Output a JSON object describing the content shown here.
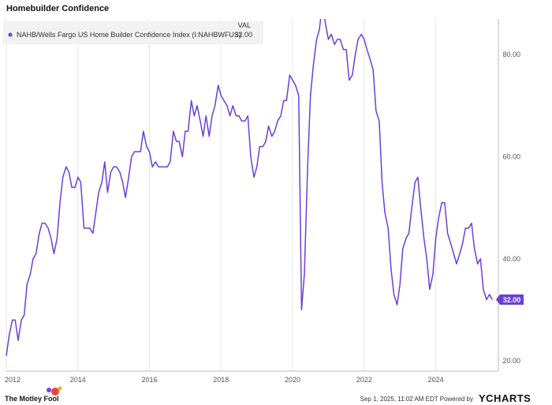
{
  "chart_title": "Homebuilder Confidence",
  "legend": {
    "series_name": "NAHB/Wells Fargo US Home Builder Confidence Index (I:NAHBWFUS)",
    "val_header": "VAL",
    "val": "32.00"
  },
  "end_label": "32.00",
  "footer": {
    "timestamp": "Sep 1, 2025, 11:02 AM EDT Powered by",
    "ycharts": "YCHARTS",
    "brand": "The Motley Fool"
  },
  "colors": {
    "series": "#6b3fd6",
    "grid": "#e6e6e6",
    "axis": "#bbbbbb"
  },
  "chart_data": {
    "type": "line",
    "title": "Homebuilder Confidence",
    "xlabel": "",
    "ylabel": "",
    "xlim": [
      2012.0,
      2025.75
    ],
    "ylim": [
      18,
      87
    ],
    "x_ticks": [
      2012,
      2014,
      2016,
      2018,
      2020,
      2022,
      2024
    ],
    "x_tick_labels": [
      "2012",
      "2014",
      "2016",
      "2018",
      "2020",
      "2022",
      "2024"
    ],
    "y_ticks": [
      20,
      40,
      60,
      80
    ],
    "y_tick_labels": [
      "20.00",
      "40.00",
      "60.00",
      "80.00"
    ],
    "grid": "vertical",
    "legend_position": "top-left",
    "series": [
      {
        "name": "NAHB/Wells Fargo US Home Builder Confidence Index (I:NAHBWFUS)",
        "x": [
          2012.0,
          2012.08,
          2012.17,
          2012.25,
          2012.33,
          2012.42,
          2012.5,
          2012.58,
          2012.67,
          2012.75,
          2012.83,
          2012.92,
          2013.0,
          2013.08,
          2013.17,
          2013.25,
          2013.33,
          2013.42,
          2013.5,
          2013.58,
          2013.67,
          2013.75,
          2013.83,
          2013.92,
          2014.0,
          2014.08,
          2014.17,
          2014.25,
          2014.33,
          2014.42,
          2014.5,
          2014.58,
          2014.67,
          2014.75,
          2014.83,
          2014.92,
          2015.0,
          2015.08,
          2015.17,
          2015.25,
          2015.33,
          2015.42,
          2015.5,
          2015.58,
          2015.67,
          2015.75,
          2015.83,
          2015.92,
          2016.0,
          2016.08,
          2016.17,
          2016.25,
          2016.33,
          2016.42,
          2016.5,
          2016.58,
          2016.67,
          2016.75,
          2016.83,
          2016.92,
          2017.0,
          2017.08,
          2017.17,
          2017.25,
          2017.33,
          2017.42,
          2017.5,
          2017.58,
          2017.67,
          2017.75,
          2017.83,
          2017.92,
          2018.0,
          2018.08,
          2018.17,
          2018.25,
          2018.33,
          2018.42,
          2018.5,
          2018.58,
          2018.67,
          2018.75,
          2018.83,
          2018.92,
          2019.0,
          2019.08,
          2019.17,
          2019.25,
          2019.33,
          2019.42,
          2019.5,
          2019.58,
          2019.67,
          2019.75,
          2019.83,
          2019.92,
          2020.0,
          2020.08,
          2020.17,
          2020.25,
          2020.33,
          2020.42,
          2020.5,
          2020.58,
          2020.67,
          2020.75,
          2020.83,
          2020.92,
          2021.0,
          2021.08,
          2021.17,
          2021.25,
          2021.33,
          2021.42,
          2021.5,
          2021.58,
          2021.67,
          2021.75,
          2021.83,
          2021.92,
          2022.0,
          2022.08,
          2022.17,
          2022.25,
          2022.33,
          2022.42,
          2022.5,
          2022.58,
          2022.67,
          2022.75,
          2022.83,
          2022.92,
          2023.0,
          2023.08,
          2023.17,
          2023.25,
          2023.33,
          2023.42,
          2023.5,
          2023.58,
          2023.67,
          2023.75,
          2023.83,
          2023.92,
          2024.0,
          2024.08,
          2024.17,
          2024.25,
          2024.33,
          2024.42,
          2024.5,
          2024.58,
          2024.67,
          2024.75,
          2024.83,
          2024.92,
          2025.0,
          2025.08,
          2025.17,
          2025.25,
          2025.33,
          2025.42,
          2025.5,
          2025.58
        ],
        "values": [
          21,
          25,
          28,
          28,
          24,
          28,
          29,
          35,
          37,
          40,
          41,
          45,
          47,
          47,
          46,
          44,
          41,
          44,
          51,
          56,
          58,
          57,
          54,
          54,
          56,
          55,
          46,
          46,
          46,
          45,
          49,
          53,
          55,
          59,
          53,
          57,
          58,
          58,
          57,
          55,
          52,
          56,
          60,
          61,
          61,
          61,
          65,
          62,
          61,
          58,
          59,
          58,
          58,
          58,
          58,
          59,
          65,
          63,
          63,
          60,
          65,
          65,
          71,
          68,
          70,
          67,
          64,
          68,
          64,
          68,
          70,
          74,
          72,
          71,
          70,
          68,
          70,
          68,
          68,
          67,
          67,
          68,
          60,
          56,
          58,
          62,
          62,
          63,
          66,
          64,
          65,
          67,
          68,
          71,
          71,
          76,
          75,
          74,
          72,
          30,
          37,
          58,
          72,
          78,
          83,
          85,
          90,
          86,
          83,
          84,
          82,
          83,
          83,
          81,
          81,
          75,
          76,
          80,
          83,
          84,
          83,
          81,
          79,
          77,
          69,
          67,
          55,
          49,
          46,
          38,
          33,
          31,
          35,
          42,
          44,
          45,
          50,
          55,
          56,
          50,
          44,
          40,
          34,
          37,
          44,
          48,
          51,
          51,
          45,
          43,
          41,
          39,
          41,
          43,
          46,
          46,
          47,
          42,
          39,
          40,
          34,
          32,
          33,
          32
        ]
      }
    ]
  }
}
